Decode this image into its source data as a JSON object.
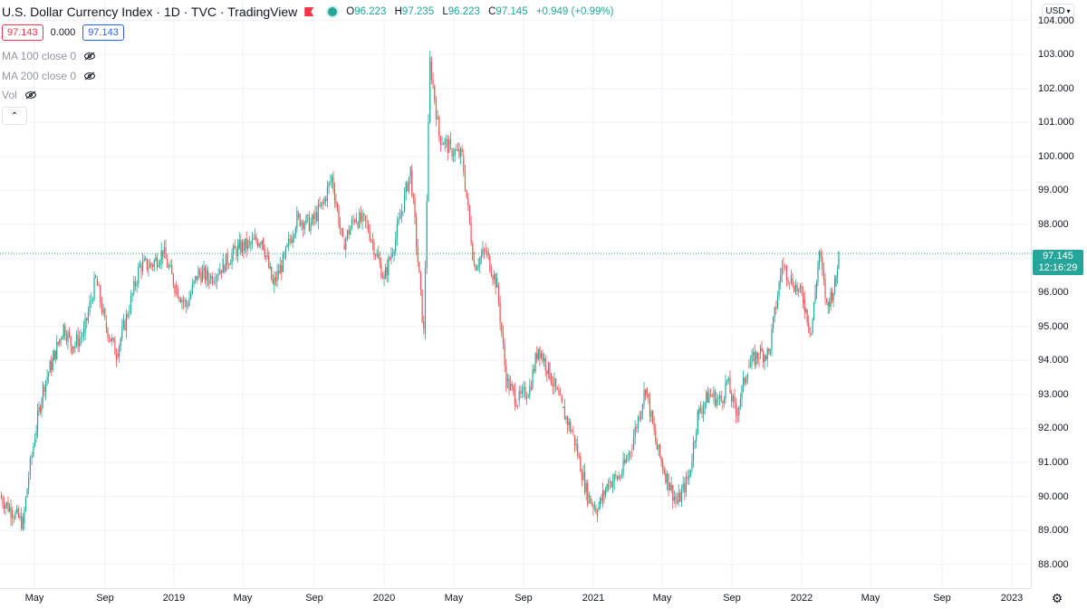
{
  "header": {
    "title": "U.S. Dollar Currency Index · 1D · TVC · TradingView",
    "ohlc": {
      "open_key": "O",
      "open": "96.223",
      "high_key": "H",
      "high": "97.235",
      "low_key": "L",
      "low": "96.223",
      "close_key": "C",
      "close": "97.145",
      "change": "+0.949 (+0.99%)"
    }
  },
  "order_panel": {
    "sell": "97.143",
    "spread": "0.000",
    "buy": "97.143"
  },
  "indicators": [
    {
      "label": "MA 100 close 0"
    },
    {
      "label": "MA 200 close 0"
    },
    {
      "label": "Vol"
    }
  ],
  "axis": {
    "currency": "USD",
    "y_ticks": [
      "104.000",
      "103.000",
      "102.000",
      "101.000",
      "100.000",
      "99.000",
      "98.000",
      "97.000",
      "96.000",
      "95.000",
      "94.000",
      "93.000",
      "92.000",
      "91.000",
      "90.000",
      "89.000",
      "88.000"
    ],
    "x_ticks": [
      "May",
      "Sep",
      "2019",
      "May",
      "Sep",
      "2020",
      "May",
      "Sep",
      "2021",
      "May",
      "Sep",
      "2022",
      "May",
      "Sep",
      "2023"
    ]
  },
  "last_price": {
    "value": "97.145",
    "countdown": "12:16:29"
  },
  "colors": {
    "up": "#26a69a",
    "down": "#ef5350",
    "grid": "#f0f3fa",
    "last_line": "#26a69a"
  },
  "chart_data": {
    "type": "line",
    "title": "U.S. Dollar Currency Index · 1D · TVC · TradingView",
    "xlabel": "",
    "ylabel": "",
    "ylim": [
      87.3,
      104.6
    ],
    "xlim": [
      "2018-03-01",
      "2023-02-01"
    ],
    "grid": true,
    "series": [
      {
        "points": [
          [
            "2018-03-01",
            90.0
          ],
          [
            "2018-03-20",
            89.6
          ],
          [
            "2018-04-10",
            89.2
          ],
          [
            "2018-04-20",
            90.6
          ],
          [
            "2018-05-01",
            91.8
          ],
          [
            "2018-05-15",
            93.2
          ],
          [
            "2018-06-01",
            94.0
          ],
          [
            "2018-06-20",
            95.0
          ],
          [
            "2018-07-05",
            94.4
          ],
          [
            "2018-07-25",
            94.8
          ],
          [
            "2018-08-15",
            96.4
          ],
          [
            "2018-08-31",
            95.1
          ],
          [
            "2018-09-20",
            94.2
          ],
          [
            "2018-10-10",
            95.4
          ],
          [
            "2018-10-31",
            96.8
          ],
          [
            "2018-11-20",
            96.8
          ],
          [
            "2018-12-10",
            97.2
          ],
          [
            "2018-12-31",
            96.2
          ],
          [
            "2019-01-20",
            95.6
          ],
          [
            "2019-02-10",
            96.6
          ],
          [
            "2019-03-01",
            96.4
          ],
          [
            "2019-03-25",
            96.8
          ],
          [
            "2019-04-20",
            97.3
          ],
          [
            "2019-05-10",
            97.4
          ],
          [
            "2019-06-01",
            97.6
          ],
          [
            "2019-06-20",
            96.2
          ],
          [
            "2019-07-10",
            97.0
          ],
          [
            "2019-08-01",
            98.2
          ],
          [
            "2019-08-25",
            98.0
          ],
          [
            "2019-09-15",
            98.6
          ],
          [
            "2019-10-01",
            99.4
          ],
          [
            "2019-10-20",
            97.4
          ],
          [
            "2019-11-10",
            98.2
          ],
          [
            "2019-12-01",
            98.0
          ],
          [
            "2019-12-31",
            96.4
          ],
          [
            "2020-01-20",
            97.6
          ],
          [
            "2020-02-15",
            99.6
          ],
          [
            "2020-03-09",
            94.8
          ],
          [
            "2020-03-20",
            102.8
          ],
          [
            "2020-04-05",
            100.6
          ],
          [
            "2020-04-25",
            100.2
          ],
          [
            "2020-05-15",
            100.0
          ],
          [
            "2020-06-05",
            96.8
          ],
          [
            "2020-06-25",
            97.2
          ],
          [
            "2020-07-15",
            96.2
          ],
          [
            "2020-07-31",
            93.4
          ],
          [
            "2020-08-20",
            92.8
          ],
          [
            "2020-09-10",
            93.2
          ],
          [
            "2020-09-25",
            94.4
          ],
          [
            "2020-10-15",
            93.6
          ],
          [
            "2020-11-05",
            92.6
          ],
          [
            "2020-11-25",
            91.8
          ],
          [
            "2020-12-20",
            90.0
          ],
          [
            "2021-01-06",
            89.6
          ],
          [
            "2021-01-25",
            90.4
          ],
          [
            "2021-02-15",
            90.6
          ],
          [
            "2021-03-05",
            91.4
          ],
          [
            "2021-03-31",
            93.2
          ],
          [
            "2021-04-20",
            91.4
          ],
          [
            "2021-05-10",
            90.4
          ],
          [
            "2021-05-25",
            89.8
          ],
          [
            "2021-06-15",
            90.6
          ],
          [
            "2021-06-30",
            92.4
          ],
          [
            "2021-07-20",
            93.0
          ],
          [
            "2021-08-10",
            92.8
          ],
          [
            "2021-08-20",
            93.4
          ],
          [
            "2021-09-05",
            92.4
          ],
          [
            "2021-09-25",
            93.8
          ],
          [
            "2021-10-15",
            94.2
          ],
          [
            "2021-11-01",
            94.2
          ],
          [
            "2021-11-24",
            96.8
          ],
          [
            "2021-12-10",
            96.4
          ],
          [
            "2021-12-31",
            95.8
          ],
          [
            "2022-01-14",
            94.8
          ],
          [
            "2022-01-28",
            97.2
          ],
          [
            "2022-02-10",
            95.6
          ],
          [
            "2022-02-24",
            96.2
          ],
          [
            "2022-03-03",
            97.145
          ]
        ]
      }
    ],
    "last_value": 97.145
  }
}
